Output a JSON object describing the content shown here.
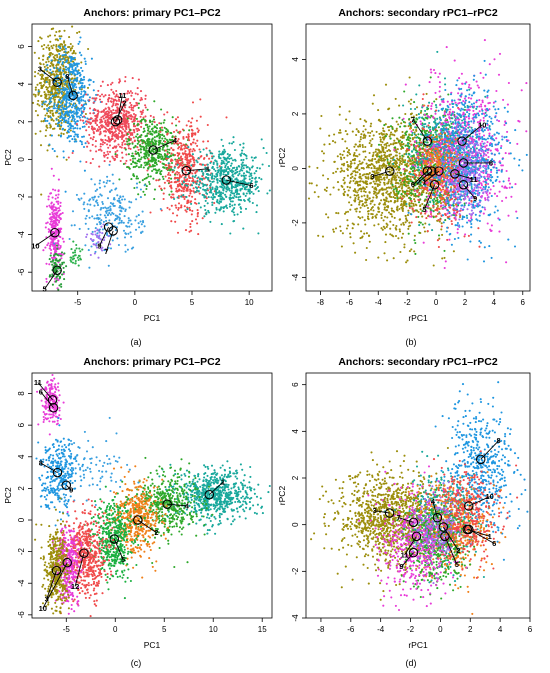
{
  "figure": {
    "panel_labels": [
      "(a)",
      "(b)",
      "(c)",
      "(d)"
    ]
  },
  "chart_data": [
    {
      "type": "scatter",
      "title": "Anchors: primary PC1–PC2",
      "xlabel": "PC1",
      "ylabel": "PC2",
      "xlim": [
        -9,
        12
      ],
      "ylim": [
        -7,
        7.2
      ],
      "xticks": [
        -5,
        0,
        5,
        10
      ],
      "yticks": [
        -6,
        -4,
        -2,
        0,
        2,
        4,
        6
      ],
      "grid": false,
      "legend": "none",
      "clusters": [
        {
          "color": "#9c8e0c",
          "x": -6.8,
          "y": 4.0,
          "sx": 0.9,
          "sy": 1.4,
          "n": 600
        },
        {
          "color": "#1f96e0",
          "x": -5.6,
          "y": 3.3,
          "sx": 0.9,
          "sy": 1.3,
          "n": 500
        },
        {
          "color": "#ef4a5a",
          "x": -1.6,
          "y": 2.0,
          "sx": 1.3,
          "sy": 0.9,
          "n": 600
        },
        {
          "color": "#2ea82a",
          "x": 1.6,
          "y": 0.5,
          "sx": 1.1,
          "sy": 0.9,
          "n": 450
        },
        {
          "color": "#f04a4a",
          "x": 4.4,
          "y": -0.6,
          "sx": 1.0,
          "sy": 1.3,
          "n": 450
        },
        {
          "color": "#18a89c",
          "x": 8.0,
          "y": -1.2,
          "sx": 1.7,
          "sy": 0.8,
          "n": 600
        },
        {
          "color": "#e83cd8",
          "x": -7.0,
          "y": -3.8,
          "sx": 0.3,
          "sy": 1.1,
          "n": 280
        },
        {
          "color": "#2a9e3c",
          "x": -6.8,
          "y": -5.8,
          "sx": 0.3,
          "sy": 0.5,
          "n": 90
        },
        {
          "color": "#3aa0e0",
          "x": -2.0,
          "y": -3.0,
          "sx": 1.4,
          "sy": 1.0,
          "n": 230
        },
        {
          "color": "#a070f0",
          "x": -3.2,
          "y": -4.3,
          "sx": 0.5,
          "sy": 0.4,
          "n": 40
        },
        {
          "color": "#2ab04a",
          "x": -5.2,
          "y": -5.2,
          "sx": 0.3,
          "sy": 0.3,
          "n": 30
        }
      ],
      "anchors": [
        {
          "id": "1",
          "x": 4.5,
          "y": -0.6,
          "lx": 6.4,
          "ly": -0.5
        },
        {
          "id": "2",
          "x": -1.7,
          "y": 2.0,
          "lx": -0.9,
          "ly": 3.0
        },
        {
          "id": "3",
          "x": -6.8,
          "y": 4.1,
          "lx": -8.3,
          "ly": 4.8
        },
        {
          "id": "4",
          "x": 1.6,
          "y": 0.5,
          "lx": 3.5,
          "ly": 1.0
        },
        {
          "id": "5",
          "x": -6.8,
          "y": -5.9,
          "lx": -7.9,
          "ly": -6.9
        },
        {
          "id": "6",
          "x": 8.0,
          "y": -1.1,
          "lx": 10.2,
          "ly": -1.4
        },
        {
          "id": "7",
          "x": -1.9,
          "y": -3.8,
          "lx": -2.5,
          "ly": -4.9
        },
        {
          "id": "8",
          "x": -5.4,
          "y": 3.4,
          "lx": -5.9,
          "ly": 4.4
        },
        {
          "id": "9",
          "x": -2.3,
          "y": -3.6,
          "lx": -3.1,
          "ly": -4.6
        },
        {
          "id": "10",
          "x": -7.0,
          "y": -3.9,
          "lx": -8.7,
          "ly": -4.6
        },
        {
          "id": "11",
          "x": -1.5,
          "y": 2.1,
          "lx": -1.1,
          "ly": 3.4
        }
      ]
    },
    {
      "type": "scatter",
      "title": "Anchors: secondary rPC1–rPC2",
      "xlabel": "rPC1",
      "ylabel": "rPC2",
      "xlim": [
        -9,
        6.5
      ],
      "ylim": [
        -4.5,
        5.3
      ],
      "xticks": [
        -8,
        -6,
        -4,
        -2,
        0,
        2,
        4,
        6
      ],
      "yticks": [
        -4,
        -2,
        0,
        2,
        4
      ],
      "grid": false,
      "legend": "none",
      "clusters": [
        {
          "color": "#9c8e0c",
          "x": -3.2,
          "y": -0.3,
          "sx": 1.9,
          "sy": 1.1,
          "n": 1300
        },
        {
          "color": "#2ea82a",
          "x": -0.6,
          "y": 0.4,
          "sx": 1.2,
          "sy": 1.0,
          "n": 500
        },
        {
          "color": "#18a89c",
          "x": 0.6,
          "y": 0.5,
          "sx": 1.2,
          "sy": 1.0,
          "n": 500
        },
        {
          "color": "#f04a4a",
          "x": 0.3,
          "y": -0.3,
          "sx": 1.0,
          "sy": 0.9,
          "n": 400
        },
        {
          "color": "#e83cd8",
          "x": 2.0,
          "y": 0.6,
          "sx": 1.5,
          "sy": 1.3,
          "n": 700
        },
        {
          "color": "#1f96e0",
          "x": 2.3,
          "y": 0.4,
          "sx": 1.3,
          "sy": 1.3,
          "n": 650
        },
        {
          "color": "#a070f0",
          "x": 2.0,
          "y": -0.2,
          "sx": 0.8,
          "sy": 0.8,
          "n": 250
        },
        {
          "color": "#f0801a",
          "x": 0.0,
          "y": 0.0,
          "sx": 0.7,
          "sy": 0.6,
          "n": 150
        }
      ],
      "anchors": [
        {
          "id": "10",
          "x": 1.8,
          "y": 1.0,
          "lx": 3.2,
          "ly": 1.6
        },
        {
          "id": "8",
          "x": 1.9,
          "y": 0.2,
          "lx": 3.8,
          "ly": 0.2
        },
        {
          "id": "7",
          "x": -0.6,
          "y": 1.0,
          "lx": -1.6,
          "ly": 1.8
        },
        {
          "id": "3",
          "x": -3.2,
          "y": -0.1,
          "lx": -4.4,
          "ly": -0.3
        },
        {
          "id": "6",
          "x": -0.6,
          "y": -0.1,
          "lx": -1.6,
          "ly": -0.6
        },
        {
          "id": "2",
          "x": -0.3,
          "y": -0.1,
          "lx": -1.2,
          "ly": -0.5
        },
        {
          "id": "1",
          "x": 0.2,
          "y": -0.1,
          "lx": -0.8,
          "ly": -0.5
        },
        {
          "id": "11",
          "x": 1.3,
          "y": -0.2,
          "lx": 2.6,
          "ly": -0.4
        },
        {
          "id": "9",
          "x": 1.9,
          "y": -0.6,
          "lx": 2.7,
          "ly": -1.1
        },
        {
          "id": "5",
          "x": -0.1,
          "y": -0.6,
          "lx": -0.8,
          "ly": -1.5
        }
      ]
    },
    {
      "type": "scatter",
      "title": "Anchors: primary PC1–PC2",
      "xlabel": "PC1",
      "ylabel": "PC2",
      "xlim": [
        -8.5,
        16
      ],
      "ylim": [
        -6.2,
        9.3
      ],
      "xticks": [
        -5,
        0,
        5,
        10,
        15
      ],
      "yticks": [
        -6,
        -4,
        -2,
        0,
        2,
        4,
        6,
        8
      ],
      "grid": false,
      "legend": "none",
      "clusters": [
        {
          "color": "#e83cd8",
          "x": -6.4,
          "y": 7.4,
          "sx": 0.5,
          "sy": 0.7,
          "n": 180
        },
        {
          "color": "#1f96e0",
          "x": -5.8,
          "y": 3.0,
          "sx": 0.9,
          "sy": 1.1,
          "n": 300
        },
        {
          "color": "#3aa0e0",
          "x": -2.0,
          "y": 3.2,
          "sx": 1.8,
          "sy": 1.0,
          "n": 80
        },
        {
          "color": "#18a89c",
          "x": 10.2,
          "y": 1.6,
          "sx": 1.9,
          "sy": 0.8,
          "n": 650
        },
        {
          "color": "#2ea82a",
          "x": 5.4,
          "y": 1.0,
          "sx": 1.5,
          "sy": 1.0,
          "n": 450
        },
        {
          "color": "#f0801a",
          "x": 2.2,
          "y": 0.1,
          "sx": 1.2,
          "sy": 1.1,
          "n": 450
        },
        {
          "color": "#1ab040",
          "x": -0.2,
          "y": -1.2,
          "sx": 1.0,
          "sy": 1.2,
          "n": 450
        },
        {
          "color": "#f04a4a",
          "x": -3.0,
          "y": -2.3,
          "sx": 1.0,
          "sy": 1.3,
          "n": 500
        },
        {
          "color": "#e83cd8",
          "x": -4.8,
          "y": -2.8,
          "sx": 0.6,
          "sy": 1.2,
          "n": 350
        },
        {
          "color": "#9c8e0c",
          "x": -6.0,
          "y": -3.2,
          "sx": 0.6,
          "sy": 1.4,
          "n": 400
        }
      ],
      "anchors": [
        {
          "id": "11",
          "x": -6.4,
          "y": 7.6,
          "lx": -7.9,
          "ly": 8.7
        },
        {
          "id": "6",
          "x": -6.3,
          "y": 7.1,
          "lx": -7.6,
          "ly": 8.1
        },
        {
          "id": "8",
          "x": -5.9,
          "y": 3.0,
          "lx": -7.6,
          "ly": 3.6
        },
        {
          "id": "4",
          "x": 5.3,
          "y": 1.0,
          "lx": 7.3,
          "ly": 0.9
        },
        {
          "id": "2",
          "x": 2.3,
          "y": 0.0,
          "lx": 4.2,
          "ly": -0.8
        },
        {
          "id": "5",
          "x": -0.1,
          "y": -1.2,
          "lx": 0.8,
          "ly": -2.5
        },
        {
          "id": "1",
          "x": 9.6,
          "y": 1.6,
          "lx": 11.0,
          "ly": 2.4
        },
        {
          "id": "12",
          "x": -3.2,
          "y": -2.1,
          "lx": -4.1,
          "ly": -4.2
        },
        {
          "id": "3",
          "x": -6.0,
          "y": -3.2,
          "lx": -7.0,
          "ly": -5.0
        },
        {
          "id": "10",
          "x": -4.9,
          "y": -2.7,
          "lx": -7.4,
          "ly": -5.6
        },
        {
          "id": "9",
          "x": -5.0,
          "y": 2.2,
          "lx": -4.5,
          "ly": 1.9
        }
      ]
    },
    {
      "type": "scatter",
      "title": "Anchors: secondary rPC1–rPC2",
      "xlabel": "rPC1",
      "ylabel": "rPC2",
      "xlim": [
        -9,
        6
      ],
      "ylim": [
        -4,
        6.5
      ],
      "xticks": [
        -8,
        -6,
        -4,
        -2,
        0,
        2,
        4,
        6
      ],
      "yticks": [
        -4,
        -2,
        0,
        2,
        4,
        6
      ],
      "grid": false,
      "legend": "none",
      "clusters": [
        {
          "color": "#9c8e0c",
          "x": -3.3,
          "y": 0.2,
          "sx": 1.8,
          "sy": 1.0,
          "n": 1100
        },
        {
          "color": "#1f96e0",
          "x": 2.8,
          "y": 2.4,
          "sx": 1.1,
          "sy": 1.3,
          "n": 500
        },
        {
          "color": "#18a89c",
          "x": 0.2,
          "y": 0.2,
          "sx": 1.1,
          "sy": 0.9,
          "n": 450
        },
        {
          "color": "#f0801a",
          "x": 0.9,
          "y": -0.2,
          "sx": 1.2,
          "sy": 1.0,
          "n": 450
        },
        {
          "color": "#2ea82a",
          "x": -0.4,
          "y": -0.8,
          "sx": 1.0,
          "sy": 0.9,
          "n": 400
        },
        {
          "color": "#e83cd8",
          "x": -1.5,
          "y": -0.8,
          "sx": 1.3,
          "sy": 1.1,
          "n": 450
        },
        {
          "color": "#f04a4a",
          "x": 1.7,
          "y": 0.4,
          "sx": 1.0,
          "sy": 0.9,
          "n": 350
        },
        {
          "color": "#a070f0",
          "x": -0.5,
          "y": -0.2,
          "sx": 0.8,
          "sy": 0.8,
          "n": 150
        }
      ],
      "anchors": [
        {
          "id": "8",
          "x": 2.7,
          "y": 2.8,
          "lx": 3.9,
          "ly": 3.6
        },
        {
          "id": "10",
          "x": 1.9,
          "y": 0.8,
          "lx": 3.3,
          "ly": 1.2
        },
        {
          "id": "3",
          "x": -3.4,
          "y": 0.5,
          "lx": -4.4,
          "ly": 0.6
        },
        {
          "id": "7",
          "x": -1.8,
          "y": 0.1,
          "lx": -2.8,
          "ly": 0.3
        },
        {
          "id": "4",
          "x": -0.2,
          "y": 0.3,
          "lx": -0.5,
          "ly": 1.0
        },
        {
          "id": "1",
          "x": 1.8,
          "y": -0.2,
          "lx": 3.3,
          "ly": -0.5
        },
        {
          "id": "6",
          "x": 1.9,
          "y": -0.2,
          "lx": 3.6,
          "ly": -0.8
        },
        {
          "id": "2",
          "x": 0.2,
          "y": -0.1,
          "lx": 1.2,
          "ly": -1.1
        },
        {
          "id": "5",
          "x": 0.3,
          "y": -0.5,
          "lx": 1.1,
          "ly": -1.7
        },
        {
          "id": "11",
          "x": -1.6,
          "y": -0.5,
          "lx": -2.4,
          "ly": -1.3
        },
        {
          "id": "9",
          "x": -1.8,
          "y": -1.2,
          "lx": -2.6,
          "ly": -1.8
        }
      ]
    }
  ]
}
